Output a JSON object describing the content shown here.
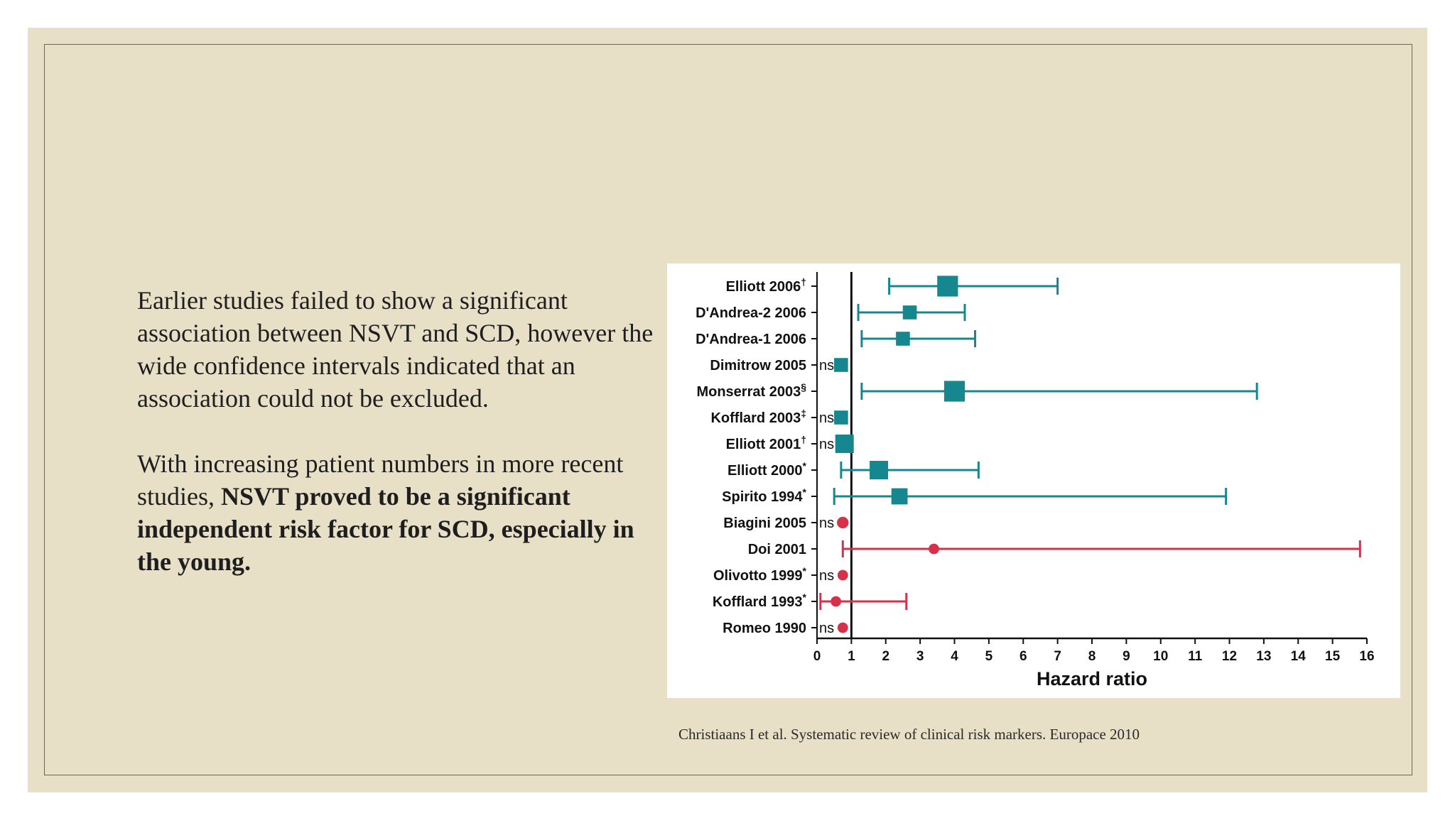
{
  "slide": {
    "paragraph1": "Earlier studies failed to show a significant association between NSVT and SCD, however the wide confidence intervals indicated that an association could not be excluded.",
    "paragraph2_plain": "With increasing patient numbers in more recent studies,",
    "paragraph2_bold": "NSVT proved to be a significant independent risk factor for SCD, especially in the young.",
    "citation": "Christiaans I et al. Systematic review of clinical risk markers. Europace 2010",
    "colors": {
      "background": "#e7dfc6",
      "teal": "#17878f",
      "red": "#d7304a"
    }
  },
  "chart_data": {
    "type": "forest",
    "xlabel": "Hazard ratio",
    "xlim": [
      0,
      16
    ],
    "ticks": [
      "0",
      "1",
      "2",
      "3",
      "4",
      "5",
      "6",
      "7",
      "8",
      "9",
      "10",
      "11",
      "12",
      "13",
      "14",
      "15",
      "16"
    ],
    "reference_line": 1,
    "ns_label": "ns",
    "studies": [
      {
        "label": "Elliott 2006",
        "sup": "†",
        "hr": 3.8,
        "ci": [
          2.1,
          7.0
        ],
        "color": "teal",
        "weight": 3
      },
      {
        "label": "D'Andrea-2 2006",
        "sup": "",
        "hr": 2.7,
        "ci": [
          1.2,
          4.3
        ],
        "color": "teal",
        "weight": 1.5
      },
      {
        "label": "D'Andrea-1 2006",
        "sup": "",
        "hr": 2.5,
        "ci": [
          1.3,
          4.6
        ],
        "color": "teal",
        "weight": 1.5
      },
      {
        "label": "Dimitrow 2005",
        "sup": "",
        "hr": 0.7,
        "ci": null,
        "color": "teal",
        "ns": true,
        "weight": 1.5
      },
      {
        "label": "Monserrat 2003",
        "sup": "§",
        "hr": 4.0,
        "ci": [
          1.3,
          12.8
        ],
        "color": "teal",
        "weight": 3
      },
      {
        "label": "Kofflard 2003",
        "sup": "‡",
        "hr": 0.7,
        "ci": null,
        "color": "teal",
        "ns": true,
        "weight": 1.5
      },
      {
        "label": "Elliott 2001",
        "sup": "†",
        "hr": 0.8,
        "ci": null,
        "color": "teal",
        "ns": true,
        "weight": 2.5
      },
      {
        "label": "Elliott 2000",
        "sup": "*",
        "hr": 1.8,
        "ci": [
          0.7,
          4.7
        ],
        "color": "teal",
        "weight": 2.5
      },
      {
        "label": "Spirito 1994",
        "sup": "*",
        "hr": 2.4,
        "ci": [
          0.5,
          11.9
        ],
        "color": "teal",
        "weight": 2
      },
      {
        "label": "Biagini 2005",
        "sup": "",
        "hr": 0.75,
        "ci": null,
        "color": "red",
        "ns": true,
        "weight": 2
      },
      {
        "label": "Doi 2001",
        "sup": "",
        "hr": 3.4,
        "ci": [
          0.75,
          15.8
        ],
        "color": "red",
        "weight": 1.5
      },
      {
        "label": "Olivotto 1999",
        "sup": "*",
        "hr": 0.75,
        "ci": null,
        "color": "red",
        "ns": true,
        "weight": 1.5
      },
      {
        "label": "Kofflard 1993",
        "sup": "*",
        "hr": 0.55,
        "ci": [
          0.1,
          2.6
        ],
        "color": "red",
        "weight": 1.5
      },
      {
        "label": "Romeo 1990",
        "sup": "",
        "hr": 0.75,
        "ci": null,
        "color": "red",
        "ns": true,
        "weight": 1.5
      }
    ]
  }
}
